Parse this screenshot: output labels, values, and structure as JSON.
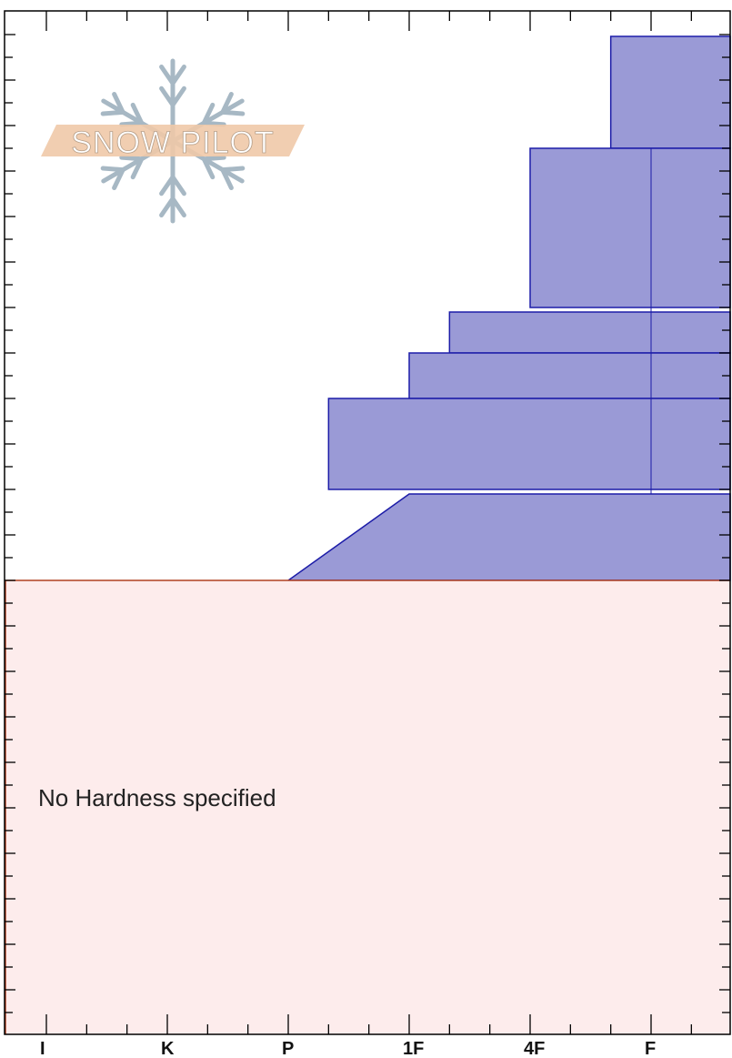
{
  "colors": {
    "layer_fill": "#9a9ad6",
    "layer_stroke": "#1c1ca8",
    "no_hardness_fill": "#fdecec",
    "no_hardness_stroke": "#b04020",
    "logo_band": "#f0c9a8",
    "snowflake": "#a7b8c4",
    "axis": "#000000"
  },
  "logo": {
    "text": "SNOW PILOT",
    "icon": "snowflake-icon"
  },
  "chart_data": {
    "type": "bar",
    "orientation": "horizontal",
    "x_axis": {
      "tick_labels": [
        "I",
        "K",
        "P",
        "1F",
        "4F",
        "F"
      ],
      "order": "hardest-left-to-softest-right"
    },
    "y_axis": {
      "tick_labels_shown": false
    },
    "layers": [
      {
        "shape": "rect",
        "hardness_from": "F-",
        "hardness_to": "F"
      },
      {
        "shape": "rect",
        "hardness_from": "4F",
        "hardness_to": "F"
      },
      {
        "shape": "rect",
        "hardness_from": "1F+",
        "hardness_to": "F"
      },
      {
        "shape": "rect",
        "hardness_from": "1F",
        "hardness_to": "F"
      },
      {
        "shape": "rect",
        "hardness_from": "P+",
        "hardness_to": "F"
      },
      {
        "shape": "trapezoid",
        "hardness_top": "1F",
        "hardness_bottom": "P",
        "hardness_to": "F"
      }
    ],
    "annotation": "No Hardness specified"
  }
}
